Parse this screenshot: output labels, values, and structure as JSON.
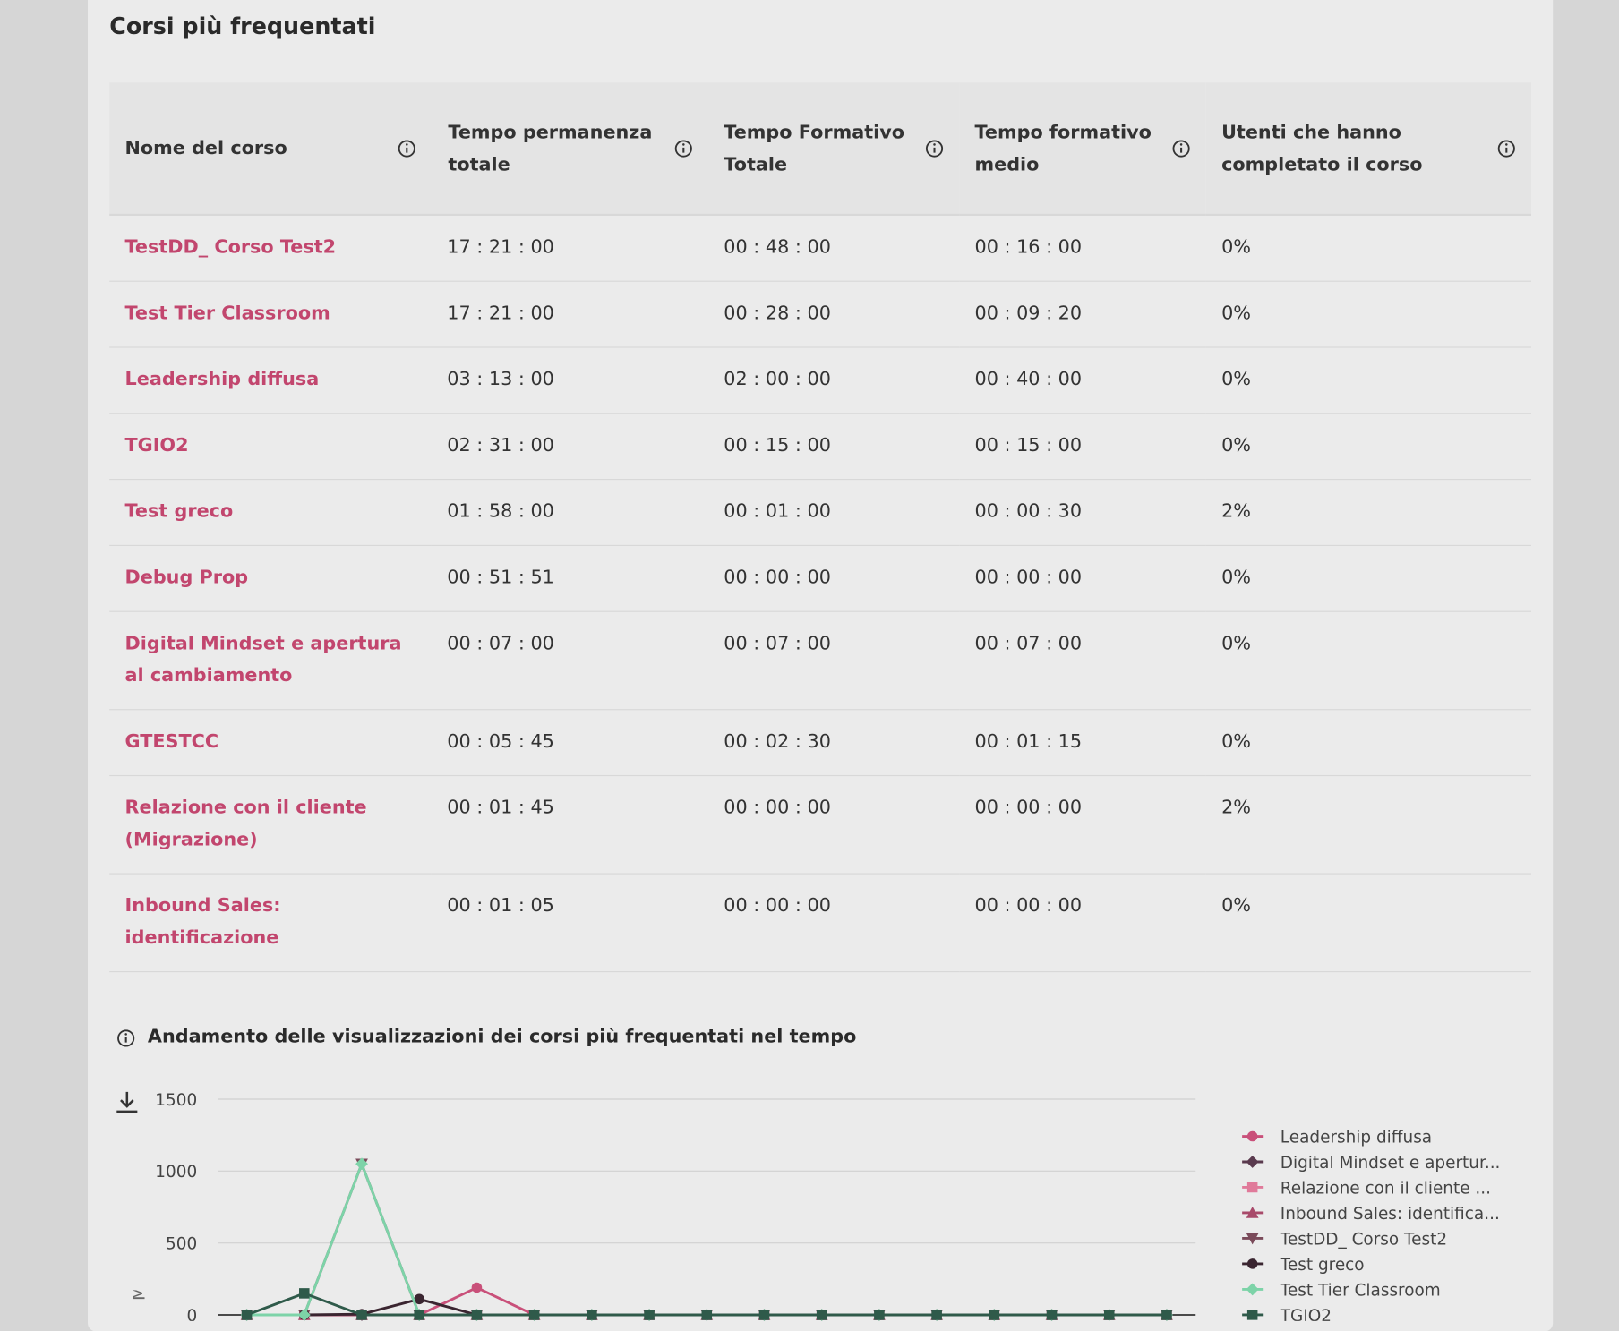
{
  "card_title": "Corsi più frequentati",
  "table": {
    "columns": [
      "Nome del corso",
      "Tempo permanenza totale",
      "Tempo Formativo Totale",
      "Tempo formativo medio",
      "Utenti che hanno completato il corso"
    ],
    "rows": [
      [
        "TestDD_ Corso Test2",
        "17 : 21 : 00",
        "00 : 48 : 00",
        "00 : 16 : 00",
        "0%"
      ],
      [
        "Test Tier Classroom",
        "17 : 21 : 00",
        "00 : 28 : 00",
        "00 : 09 : 20",
        "0%"
      ],
      [
        "Leadership diffusa",
        "03 : 13 : 00",
        "02 : 00 : 00",
        "00 : 40 : 00",
        "0%"
      ],
      [
        "TGIO2",
        "02 : 31 : 00",
        "00 : 15 : 00",
        "00 : 15 : 00",
        "0%"
      ],
      [
        "Test greco",
        "01 : 58 : 00",
        "00 : 01 : 00",
        "00 : 00 : 30",
        "2%"
      ],
      [
        "Debug Prop",
        "00 : 51 : 51",
        "00 : 00 : 00",
        "00 : 00 : 00",
        "0%"
      ],
      [
        "Digital Mindset e apertura al cambiamento",
        "00 : 07 : 00",
        "00 : 07 : 00",
        "00 : 07 : 00",
        "0%"
      ],
      [
        "GTESTCC",
        "00 : 05 : 45",
        "00 : 02 : 30",
        "00 : 01 : 15",
        "0%"
      ],
      [
        "Relazione con il cliente (Migrazione)",
        "00 : 01 : 45",
        "00 : 00 : 00",
        "00 : 00 : 00",
        "2%"
      ],
      [
        "Inbound Sales: identificazione",
        "00 : 01 : 05",
        "00 : 00 : 00",
        "00 : 00 : 00",
        "0%"
      ]
    ]
  },
  "chart_data": {
    "type": "line",
    "title": "Andamento delle visualizzazioni dei corsi più frequentati nel tempo",
    "y_label": "Minuti Visualizzazioni",
    "ylim": [
      0,
      1500
    ],
    "yticks": [
      0,
      500,
      1000,
      1500
    ],
    "grid": true,
    "categories": [
      null,
      null,
      null,
      null,
      null,
      null,
      null,
      null,
      null,
      null,
      null,
      null,
      null,
      null,
      null,
      null,
      null
    ],
    "series": [
      {
        "name": "Leadership diffusa",
        "color": "#c9507a",
        "marker": "circle",
        "values": [
          0,
          0,
          0,
          0,
          190,
          0,
          0,
          0,
          0,
          0,
          0,
          0,
          0,
          0,
          0,
          0,
          0
        ]
      },
      {
        "name": "Digital Mindset e apertur...",
        "color": "#5a3a4e",
        "marker": "diamond",
        "values": [
          0,
          0,
          0,
          0,
          0,
          0,
          0,
          0,
          0,
          0,
          0,
          0,
          0,
          0,
          0,
          0,
          0
        ]
      },
      {
        "name": "Relazione con il cliente ...",
        "color": "#e07a9a",
        "marker": "square",
        "values": [
          0,
          0,
          0,
          0,
          0,
          0,
          0,
          0,
          0,
          0,
          0,
          0,
          0,
          0,
          0,
          0,
          0
        ]
      },
      {
        "name": "Inbound Sales: identifica...",
        "color": "#a84a6a",
        "marker": "triangle",
        "values": [
          0,
          0,
          0,
          0,
          0,
          0,
          0,
          0,
          0,
          0,
          0,
          0,
          0,
          0,
          0,
          0,
          0
        ]
      },
      {
        "name": "TestDD_ Corso Test2",
        "color": "#7a4a5a",
        "marker": "triangle-down",
        "values": [
          0,
          0,
          1050,
          0,
          0,
          0,
          0,
          0,
          0,
          0,
          0,
          0,
          0,
          0,
          0,
          0,
          0
        ]
      },
      {
        "name": "Test greco",
        "color": "#3a2530",
        "marker": "circle",
        "values": [
          0,
          0,
          5,
          110,
          0,
          0,
          0,
          0,
          0,
          0,
          0,
          0,
          0,
          0,
          0,
          0,
          0
        ]
      },
      {
        "name": "Test Tier Classroom",
        "color": "#7dd3a8",
        "marker": "diamond",
        "values": [
          0,
          0,
          1050,
          0,
          0,
          0,
          0,
          0,
          0,
          0,
          0,
          0,
          0,
          0,
          0,
          0,
          0
        ]
      },
      {
        "name": "TGIO2",
        "color": "#2f5a4a",
        "marker": "square",
        "values": [
          0,
          150,
          0,
          0,
          0,
          0,
          0,
          0,
          0,
          0,
          0,
          0,
          0,
          0,
          0,
          0,
          0
        ]
      }
    ]
  }
}
